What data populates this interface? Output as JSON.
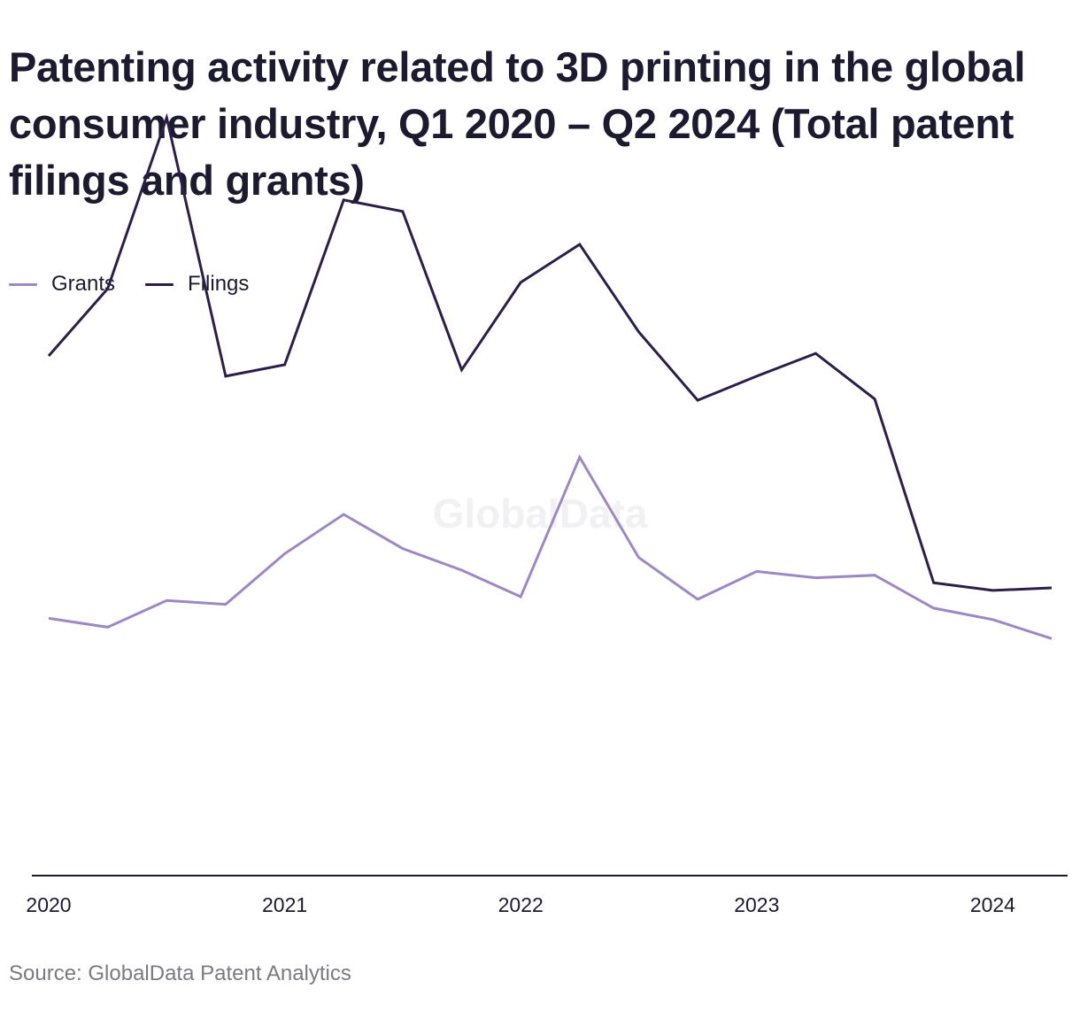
{
  "title": "Patenting activity related to 3D printing in the global consumer industry, Q1 2020 – Q2 2024 (Total patent filings and grants)",
  "source": "Source: GlobalData Patent Analytics",
  "watermark": "GlobalData",
  "colors": {
    "grants": "#9e88c4",
    "filings": "#2b1f4a",
    "axis": "#1b1a2e",
    "text": "#1b1a2e",
    "source": "#7a7a82",
    "watermark": "#f1f1f3"
  },
  "legend": [
    {
      "label": "Grants",
      "series": "grants"
    },
    {
      "label": "Filings",
      "series": "filings"
    }
  ],
  "chart_data": {
    "type": "line",
    "title": "Patenting activity related to 3D printing in the global consumer industry, Q1 2020 – Q2 2024 (Total patent filings and grants)",
    "x": [
      "2020 Q1",
      "2020 Q2",
      "2020 Q3",
      "2020 Q4",
      "2021 Q1",
      "2021 Q2",
      "2021 Q3",
      "2021 Q4",
      "2022 Q1",
      "2022 Q2",
      "2022 Q3",
      "2022 Q4",
      "2023 Q1",
      "2023 Q2",
      "2023 Q3",
      "2023 Q4",
      "2024 Q1",
      "2024 Q2"
    ],
    "x_tick_labels": [
      "2020",
      "2021",
      "2022",
      "2023",
      "2024"
    ],
    "x_tick_positions": [
      0,
      4,
      8,
      12,
      16
    ],
    "xlabel": "",
    "ylabel": "",
    "y_axis_visible": false,
    "ylim": [
      0,
      600
    ],
    "grid": false,
    "legend_position": "top-left",
    "series": [
      {
        "name": "Grants",
        "key": "grants",
        "values": [
          203,
          196,
          217,
          214,
          254,
          285,
          258,
          241,
          220,
          330,
          251,
          218,
          240,
          235,
          237,
          211,
          202,
          187
        ]
      },
      {
        "name": "Filings",
        "key": "filings",
        "values": [
          410,
          463,
          598,
          394,
          403,
          533,
          524,
          399,
          468,
          498,
          429,
          375,
          394,
          412,
          376,
          231,
          225,
          227
        ]
      }
    ]
  }
}
